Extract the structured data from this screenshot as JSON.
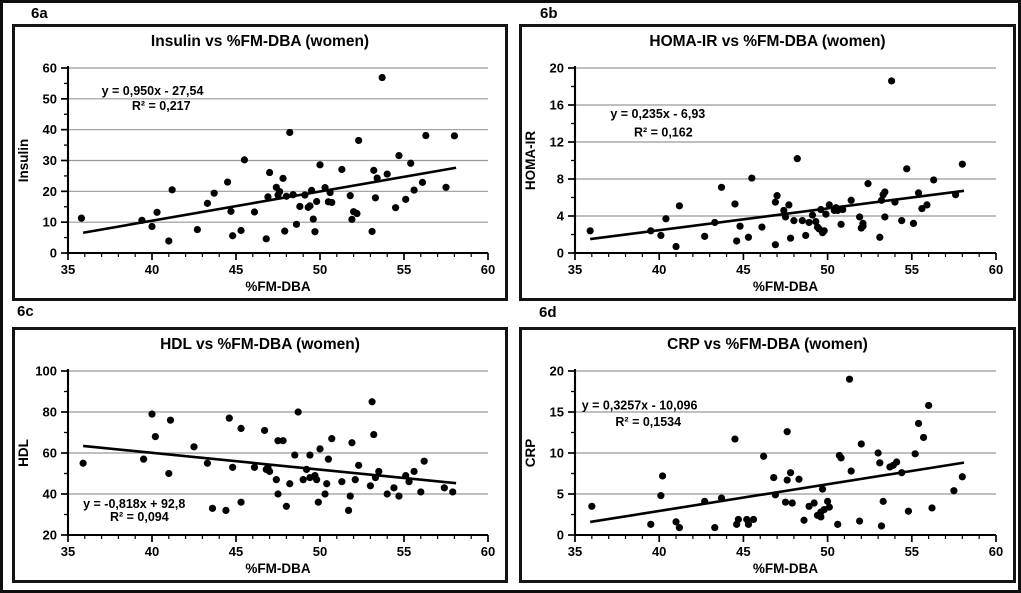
{
  "colors": {
    "ink": "#000000",
    "grid": "#999999",
    "background": "#ffffff"
  },
  "chart_data": [
    {
      "id": "6a",
      "label": "6a",
      "type": "scatter",
      "title": "Insulin vs %FM-DBA (women)",
      "xlabel": "%FM-DBA",
      "ylabel": "Insulin",
      "xlim": [
        35,
        60
      ],
      "ylim": [
        0,
        60
      ],
      "xtick_step": 5,
      "ytick_step": 10,
      "x_minor_step": 1,
      "y_minor_step": 5,
      "grid": "horizontal",
      "legend": "none",
      "equation": "y = 0,950x - 27,54",
      "r_squared": "R² = 0,217",
      "eq_pos": {
        "x": 37.0,
        "y": 51.3
      },
      "r2_pos": {
        "x": 38.8,
        "y": 46.3
      },
      "trend": {
        "slope": 0.95,
        "intercept": -27.54,
        "x_start": 35.9,
        "x_end": 58.1
      },
      "points": [
        [
          35.8,
          11.3
        ],
        [
          39.4,
          10.6
        ],
        [
          40.0,
          8.6
        ],
        [
          40.3,
          13.2
        ],
        [
          41.0,
          3.9
        ],
        [
          41.2,
          20.5
        ],
        [
          42.7,
          7.6
        ],
        [
          43.3,
          16.1
        ],
        [
          43.7,
          19.4
        ],
        [
          44.5,
          23.0
        ],
        [
          44.7,
          13.5
        ],
        [
          44.8,
          5.6
        ],
        [
          45.3,
          7.3
        ],
        [
          45.5,
          30.2
        ],
        [
          46.1,
          13.3
        ],
        [
          46.8,
          4.6
        ],
        [
          46.9,
          18.2
        ],
        [
          47.0,
          26.1
        ],
        [
          47.4,
          21.3
        ],
        [
          47.5,
          18.8
        ],
        [
          47.6,
          19.9
        ],
        [
          47.8,
          24.2
        ],
        [
          47.9,
          7.1
        ],
        [
          48.0,
          18.4
        ],
        [
          48.2,
          39.1
        ],
        [
          48.4,
          18.9
        ],
        [
          48.6,
          9.3
        ],
        [
          48.8,
          15.1
        ],
        [
          49.1,
          18.8
        ],
        [
          49.3,
          14.8
        ],
        [
          49.4,
          15.3
        ],
        [
          49.5,
          20.3
        ],
        [
          49.6,
          11.0
        ],
        [
          49.7,
          6.9
        ],
        [
          49.8,
          16.7
        ],
        [
          50.0,
          28.6
        ],
        [
          50.3,
          21.2
        ],
        [
          50.5,
          16.6
        ],
        [
          50.6,
          19.6
        ],
        [
          50.7,
          16.4
        ],
        [
          51.3,
          27.1
        ],
        [
          51.8,
          18.6
        ],
        [
          51.9,
          10.9
        ],
        [
          52.0,
          13.4
        ],
        [
          52.2,
          12.8
        ],
        [
          52.3,
          36.5
        ],
        [
          53.1,
          7.0
        ],
        [
          53.2,
          26.8
        ],
        [
          53.3,
          17.9
        ],
        [
          53.4,
          24.3
        ],
        [
          53.7,
          56.9
        ],
        [
          54.0,
          25.6
        ],
        [
          54.5,
          14.7
        ],
        [
          54.7,
          31.6
        ],
        [
          55.1,
          17.4
        ],
        [
          55.4,
          29.1
        ],
        [
          55.6,
          20.4
        ],
        [
          56.1,
          22.9
        ],
        [
          56.3,
          38.1
        ],
        [
          57.5,
          21.3
        ],
        [
          58.0,
          38.0
        ]
      ]
    },
    {
      "id": "6b",
      "label": "6b",
      "type": "scatter",
      "title": "HOMA-IR vs %FM-DBA (women)",
      "xlabel": "%FM-DBA",
      "ylabel": "HOMA-IR",
      "xlim": [
        35,
        60
      ],
      "ylim": [
        0,
        20
      ],
      "xtick_step": 5,
      "ytick_step": 4,
      "x_minor_step": 1,
      "y_minor_step": 2,
      "grid": "horizontal",
      "legend": "none",
      "equation": "y = 0,235x - 6,93",
      "r_squared": "R² = 0,162",
      "eq_pos": {
        "x": 37.1,
        "y": 14.6
      },
      "r2_pos": {
        "x": 38.5,
        "y": 12.6
      },
      "trend": {
        "slope": 0.235,
        "intercept": -6.93,
        "x_start": 35.9,
        "x_end": 58.1
      },
      "points": [
        [
          35.9,
          2.4
        ],
        [
          39.5,
          2.4
        ],
        [
          40.1,
          1.9
        ],
        [
          40.4,
          3.7
        ],
        [
          41.0,
          0.7
        ],
        [
          41.2,
          5.1
        ],
        [
          42.7,
          1.8
        ],
        [
          43.3,
          3.3
        ],
        [
          43.7,
          7.1
        ],
        [
          44.5,
          5.3
        ],
        [
          44.6,
          1.3
        ],
        [
          44.8,
          2.9
        ],
        [
          45.3,
          1.7
        ],
        [
          45.5,
          8.1
        ],
        [
          46.1,
          2.8
        ],
        [
          46.9,
          0.9
        ],
        [
          46.9,
          5.5
        ],
        [
          47.0,
          6.2
        ],
        [
          47.4,
          4.6
        ],
        [
          47.5,
          3.9
        ],
        [
          47.7,
          5.2
        ],
        [
          47.8,
          1.6
        ],
        [
          48.0,
          3.5
        ],
        [
          48.2,
          10.2
        ],
        [
          48.5,
          3.5
        ],
        [
          48.7,
          1.9
        ],
        [
          48.9,
          3.3
        ],
        [
          49.1,
          4.1
        ],
        [
          49.3,
          3.4
        ],
        [
          49.4,
          2.8
        ],
        [
          49.5,
          2.6
        ],
        [
          49.6,
          4.7
        ],
        [
          49.7,
          2.2
        ],
        [
          49.8,
          2.4
        ],
        [
          49.9,
          4.2
        ],
        [
          50.1,
          5.2
        ],
        [
          50.4,
          4.6
        ],
        [
          50.5,
          4.9
        ],
        [
          50.6,
          4.6
        ],
        [
          50.8,
          3.1
        ],
        [
          50.9,
          4.7
        ],
        [
          51.4,
          5.7
        ],
        [
          51.9,
          3.9
        ],
        [
          52.0,
          2.7
        ],
        [
          52.1,
          3.2
        ],
        [
          52.1,
          2.9
        ],
        [
          52.4,
          7.5
        ],
        [
          53.1,
          1.7
        ],
        [
          53.2,
          5.7
        ],
        [
          53.3,
          6.3
        ],
        [
          53.4,
          6.6
        ],
        [
          53.4,
          3.9
        ],
        [
          53.8,
          18.6
        ],
        [
          54.0,
          5.5
        ],
        [
          54.4,
          3.5
        ],
        [
          54.7,
          9.1
        ],
        [
          55.1,
          3.2
        ],
        [
          55.4,
          6.5
        ],
        [
          55.6,
          4.8
        ],
        [
          55.9,
          5.2
        ],
        [
          56.3,
          7.9
        ],
        [
          57.6,
          6.3
        ],
        [
          58.0,
          9.6
        ]
      ]
    },
    {
      "id": "6c",
      "label": "6c",
      "type": "scatter",
      "title": "HDL vs %FM-DBA (women)",
      "xlabel": "%FM-DBA",
      "ylabel": "HDL",
      "xlim": [
        35,
        60
      ],
      "ylim": [
        20,
        100
      ],
      "xtick_step": 5,
      "ytick_step": 20,
      "x_minor_step": 1,
      "y_minor_step": 10,
      "grid": "horizontal",
      "legend": "none",
      "equation": "y = -0,818x + 92,8",
      "r_squared": "R² = 0,094",
      "eq_pos": {
        "x": 35.9,
        "y": 33.2
      },
      "r2_pos": {
        "x": 37.5,
        "y": 26.8
      },
      "trend": {
        "slope": -0.818,
        "intercept": 92.8,
        "x_start": 35.9,
        "x_end": 58.1
      },
      "points": [
        [
          35.9,
          55
        ],
        [
          39.5,
          57
        ],
        [
          40.0,
          79
        ],
        [
          40.2,
          68
        ],
        [
          41.0,
          50
        ],
        [
          41.1,
          76
        ],
        [
          42.5,
          63
        ],
        [
          43.3,
          55
        ],
        [
          43.6,
          33
        ],
        [
          44.4,
          32
        ],
        [
          44.6,
          77
        ],
        [
          44.8,
          53
        ],
        [
          45.3,
          36
        ],
        [
          45.3,
          72
        ],
        [
          46.1,
          53
        ],
        [
          46.7,
          71
        ],
        [
          46.8,
          52
        ],
        [
          46.9,
          53
        ],
        [
          47.0,
          51
        ],
        [
          47.4,
          47
        ],
        [
          47.5,
          40
        ],
        [
          47.5,
          66
        ],
        [
          47.8,
          66
        ],
        [
          48.0,
          34
        ],
        [
          48.2,
          45
        ],
        [
          48.5,
          59
        ],
        [
          48.7,
          80
        ],
        [
          49.0,
          47
        ],
        [
          49.2,
          52
        ],
        [
          49.4,
          59
        ],
        [
          49.4,
          48
        ],
        [
          49.7,
          49
        ],
        [
          49.8,
          47
        ],
        [
          49.9,
          36
        ],
        [
          50.0,
          62
        ],
        [
          50.3,
          40
        ],
        [
          50.4,
          45
        ],
        [
          50.5,
          57
        ],
        [
          50.7,
          67
        ],
        [
          51.3,
          46
        ],
        [
          51.7,
          32
        ],
        [
          51.8,
          39
        ],
        [
          51.9,
          65
        ],
        [
          52.1,
          47
        ],
        [
          52.3,
          54
        ],
        [
          53.0,
          44
        ],
        [
          53.1,
          85
        ],
        [
          53.2,
          69
        ],
        [
          53.3,
          48
        ],
        [
          53.5,
          51
        ],
        [
          54.0,
          40
        ],
        [
          54.4,
          43
        ],
        [
          54.7,
          39
        ],
        [
          55.1,
          49
        ],
        [
          55.3,
          46
        ],
        [
          55.6,
          51
        ],
        [
          56.0,
          41
        ],
        [
          56.2,
          56
        ],
        [
          57.4,
          43
        ],
        [
          57.9,
          41
        ]
      ]
    },
    {
      "id": "6d",
      "label": "6d",
      "type": "scatter",
      "title": "CRP vs %FM-DBA (women)",
      "xlabel": "%FM-DBA",
      "ylabel": "CRP",
      "xlim": [
        35,
        60
      ],
      "ylim": [
        0,
        20
      ],
      "xtick_step": 5,
      "ytick_step": 5,
      "x_minor_step": 1,
      "y_minor_step": 2.5,
      "grid": "horizontal",
      "legend": "none",
      "equation": "y = 0,3257x - 10,096",
      "r_squared": "R² = 0,1534",
      "eq_pos": {
        "x": 35.4,
        "y": 15.3
      },
      "r2_pos": {
        "x": 37.4,
        "y": 13.3
      },
      "trend": {
        "slope": 0.3257,
        "intercept": -10.096,
        "x_start": 35.9,
        "x_end": 58.1
      },
      "points": [
        [
          36.0,
          3.5
        ],
        [
          39.5,
          1.3
        ],
        [
          40.1,
          4.8
        ],
        [
          40.2,
          7.2
        ],
        [
          41.0,
          1.6
        ],
        [
          41.2,
          0.9
        ],
        [
          42.7,
          4.1
        ],
        [
          43.3,
          0.9
        ],
        [
          43.7,
          4.5
        ],
        [
          44.5,
          11.7
        ],
        [
          44.6,
          1.3
        ],
        [
          44.7,
          1.9
        ],
        [
          45.2,
          1.9
        ],
        [
          45.3,
          1.3
        ],
        [
          45.6,
          1.9
        ],
        [
          46.2,
          9.6
        ],
        [
          46.8,
          7.0
        ],
        [
          46.9,
          4.9
        ],
        [
          47.5,
          4.0
        ],
        [
          47.6,
          6.7
        ],
        [
          47.6,
          12.6
        ],
        [
          47.8,
          7.6
        ],
        [
          47.9,
          3.9
        ],
        [
          48.3,
          6.8
        ],
        [
          48.6,
          1.8
        ],
        [
          48.9,
          3.5
        ],
        [
          49.2,
          3.9
        ],
        [
          49.4,
          2.4
        ],
        [
          49.6,
          2.8
        ],
        [
          49.6,
          2.2
        ],
        [
          49.7,
          5.6
        ],
        [
          49.8,
          3.1
        ],
        [
          50.0,
          4.1
        ],
        [
          50.1,
          3.4
        ],
        [
          50.6,
          1.3
        ],
        [
          50.7,
          9.7
        ],
        [
          50.8,
          9.4
        ],
        [
          51.3,
          19.0
        ],
        [
          51.4,
          7.8
        ],
        [
          51.9,
          1.7
        ],
        [
          52.0,
          11.1
        ],
        [
          53.0,
          10.0
        ],
        [
          53.1,
          8.8
        ],
        [
          53.2,
          1.1
        ],
        [
          53.3,
          4.1
        ],
        [
          53.7,
          8.3
        ],
        [
          53.9,
          8.5
        ],
        [
          54.1,
          8.9
        ],
        [
          54.4,
          7.6
        ],
        [
          54.8,
          2.9
        ],
        [
          55.2,
          9.9
        ],
        [
          55.4,
          13.6
        ],
        [
          55.7,
          11.9
        ],
        [
          56.0,
          15.8
        ],
        [
          56.2,
          3.3
        ],
        [
          57.5,
          5.4
        ],
        [
          58.0,
          7.1
        ]
      ]
    }
  ]
}
